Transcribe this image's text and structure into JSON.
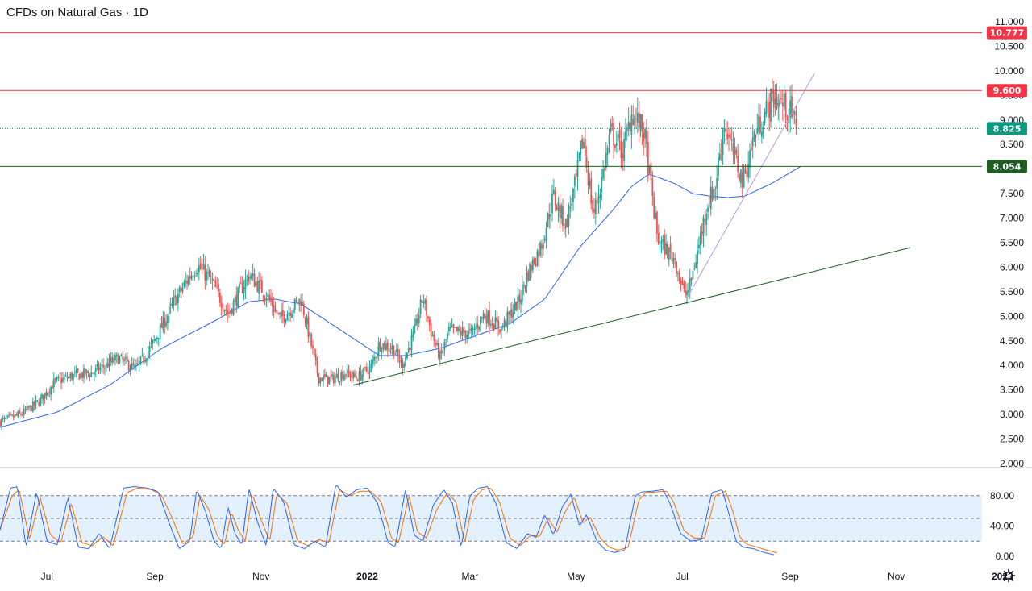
{
  "header": {
    "title": "CFDs on Natural Gas · 1D"
  },
  "colors": {
    "up": "#26a69a",
    "down": "#ef5350",
    "ma": "#2962ff",
    "resistance": "#f23645",
    "support": "#1b5e20",
    "last": "#089981",
    "trend_light": "#b39ddb",
    "stoch_k": "#2962ff",
    "stoch_d": "#ff6d00",
    "stoch_band": "#e3f0fd"
  },
  "icons": {
    "settings": "gear-icon"
  },
  "chart_data": [
    {
      "type": "candlestick",
      "title": "CFDs on Natural Gas · 1D",
      "ylim": [
        2.0,
        11.0
      ],
      "y_ticks": [
        "2.000",
        "2.500",
        "3.000",
        "3.500",
        "4.000",
        "4.500",
        "5.000",
        "5.500",
        "6.000",
        "6.500",
        "7.000",
        "7.500",
        "8.000",
        "8.500",
        "9.000",
        "9.500",
        "10.000",
        "10.500",
        "11.000"
      ],
      "x_ticks": [
        "Jul",
        "Sep",
        "Nov",
        "2022",
        "Mar",
        "May",
        "Jul",
        "Sep",
        "Nov",
        "2023"
      ],
      "x_tick_days": [
        14,
        76,
        137,
        198,
        257,
        318,
        379,
        441,
        502,
        563
      ],
      "xlim_days": [
        -13,
        580
      ],
      "anchors": [
        [
          -13,
          2.85
        ],
        [
          0,
          3.02
        ],
        [
          10,
          3.28
        ],
        [
          18,
          3.65
        ],
        [
          28,
          3.78
        ],
        [
          40,
          3.85
        ],
        [
          55,
          4.15
        ],
        [
          65,
          3.92
        ],
        [
          75,
          4.45
        ],
        [
          88,
          5.35
        ],
        [
          100,
          6.05
        ],
        [
          108,
          5.75
        ],
        [
          118,
          5.05
        ],
        [
          130,
          5.85
        ],
        [
          140,
          5.45
        ],
        [
          148,
          4.95
        ],
        [
          160,
          5.35
        ],
        [
          165,
          4.55
        ],
        [
          170,
          3.75
        ],
        [
          178,
          3.72
        ],
        [
          185,
          3.85
        ],
        [
          192,
          3.75
        ],
        [
          200,
          3.95
        ],
        [
          205,
          4.45
        ],
        [
          213,
          4.35
        ],
        [
          218,
          4.0
        ],
        [
          225,
          4.65
        ],
        [
          230,
          5.4
        ],
        [
          235,
          4.65
        ],
        [
          240,
          4.15
        ],
        [
          245,
          4.7
        ],
        [
          258,
          4.65
        ],
        [
          265,
          5.05
        ],
        [
          275,
          4.75
        ],
        [
          285,
          5.3
        ],
        [
          290,
          5.85
        ],
        [
          298,
          6.45
        ],
        [
          305,
          7.45
        ],
        [
          312,
          6.85
        ],
        [
          318,
          7.75
        ],
        [
          322,
          8.65
        ],
        [
          328,
          7.05
        ],
        [
          332,
          7.65
        ],
        [
          338,
          8.75
        ],
        [
          345,
          8.35
        ],
        [
          350,
          9.15
        ],
        [
          357,
          8.75
        ],
        [
          365,
          6.55
        ],
        [
          375,
          6.15
        ],
        [
          380,
          5.45
        ],
        [
          383,
          5.55
        ],
        [
          388,
          6.35
        ],
        [
          393,
          7.25
        ],
        [
          398,
          7.65
        ],
        [
          403,
          8.95
        ],
        [
          408,
          8.35
        ],
        [
          414,
          7.75
        ],
        [
          420,
          8.65
        ],
        [
          426,
          9.1
        ],
        [
          431,
          9.45
        ],
        [
          436,
          9.35
        ],
        [
          441,
          9.15
        ],
        [
          445,
          8.82
        ]
      ],
      "ma_anchors": [
        [
          -13,
          2.74
        ],
        [
          20,
          3.05
        ],
        [
          50,
          3.6
        ],
        [
          80,
          4.35
        ],
        [
          110,
          4.9
        ],
        [
          130,
          5.3
        ],
        [
          145,
          5.35
        ],
        [
          160,
          5.25
        ],
        [
          175,
          4.9
        ],
        [
          190,
          4.55
        ],
        [
          205,
          4.2
        ],
        [
          220,
          4.2
        ],
        [
          240,
          4.35
        ],
        [
          260,
          4.6
        ],
        [
          280,
          4.85
        ],
        [
          300,
          5.35
        ],
        [
          320,
          6.4
        ],
        [
          340,
          7.2
        ],
        [
          350,
          7.65
        ],
        [
          360,
          7.9
        ],
        [
          375,
          7.7
        ],
        [
          385,
          7.5
        ],
        [
          395,
          7.45
        ],
        [
          405,
          7.42
        ],
        [
          415,
          7.45
        ],
        [
          430,
          7.7
        ],
        [
          447,
          8.05
        ]
      ],
      "trendlines": [
        {
          "name": "rising-support",
          "from": [
            190,
            3.6
          ],
          "to": [
            510,
            6.4
          ]
        },
        {
          "name": "short-term-trend",
          "from": [
            383,
            5.45
          ],
          "to": [
            455,
            9.95
          ]
        }
      ],
      "horizontal_levels": [
        {
          "name": "resistance-high",
          "value": 10.777,
          "label": "10.777",
          "color_key": "resistance"
        },
        {
          "name": "resistance",
          "value": 9.6,
          "label": "9.600",
          "color_key": "resistance"
        },
        {
          "name": "last-price",
          "value": 8.825,
          "label": "8.825",
          "color_key": "last",
          "dotted": true
        },
        {
          "name": "support",
          "value": 8.054,
          "label": "8.054",
          "color_key": "support"
        }
      ]
    },
    {
      "type": "line",
      "name": "stochastic",
      "ylim": [
        0,
        100
      ],
      "y_ticks": [
        "0.00",
        "40.00",
        "80.00"
      ],
      "band": [
        20,
        80
      ],
      "midline": 50,
      "k_anchors": [
        [
          -13,
          35
        ],
        [
          -7,
          90
        ],
        [
          -3,
          92
        ],
        [
          2,
          12
        ],
        [
          8,
          85
        ],
        [
          14,
          20
        ],
        [
          20,
          15
        ],
        [
          26,
          78
        ],
        [
          32,
          12
        ],
        [
          38,
          10
        ],
        [
          44,
          30
        ],
        [
          50,
          10
        ],
        [
          58,
          90
        ],
        [
          64,
          92
        ],
        [
          72,
          90
        ],
        [
          78,
          85
        ],
        [
          84,
          45
        ],
        [
          90,
          10
        ],
        [
          96,
          20
        ],
        [
          100,
          88
        ],
        [
          105,
          60
        ],
        [
          110,
          20
        ],
        [
          114,
          10
        ],
        [
          118,
          65
        ],
        [
          122,
          30
        ],
        [
          126,
          15
        ],
        [
          130,
          90
        ],
        [
          135,
          45
        ],
        [
          140,
          14
        ],
        [
          144,
          90
        ],
        [
          150,
          72
        ],
        [
          156,
          15
        ],
        [
          162,
          10
        ],
        [
          168,
          20
        ],
        [
          174,
          12
        ],
        [
          180,
          95
        ],
        [
          186,
          78
        ],
        [
          192,
          88
        ],
        [
          198,
          90
        ],
        [
          204,
          70
        ],
        [
          210,
          18
        ],
        [
          214,
          12
        ],
        [
          220,
          88
        ],
        [
          225,
          28
        ],
        [
          230,
          20
        ],
        [
          236,
          68
        ],
        [
          242,
          88
        ],
        [
          247,
          70
        ],
        [
          252,
          12
        ],
        [
          257,
          80
        ],
        [
          262,
          90
        ],
        [
          267,
          92
        ],
        [
          272,
          70
        ],
        [
          278,
          18
        ],
        [
          284,
          10
        ],
        [
          290,
          30
        ],
        [
          295,
          25
        ],
        [
          300,
          55
        ],
        [
          305,
          28
        ],
        [
          310,
          65
        ],
        [
          315,
          82
        ],
        [
          320,
          40
        ],
        [
          324,
          55
        ],
        [
          330,
          20
        ],
        [
          335,
          8
        ],
        [
          340,
          5
        ],
        [
          346,
          8
        ],
        [
          352,
          80
        ],
        [
          356,
          85
        ],
        [
          362,
          86
        ],
        [
          368,
          88
        ],
        [
          372,
          70
        ],
        [
          378,
          30
        ],
        [
          384,
          20
        ],
        [
          390,
          22
        ],
        [
          396,
          84
        ],
        [
          402,
          88
        ],
        [
          406,
          55
        ],
        [
          410,
          20
        ],
        [
          414,
          12
        ],
        [
          420,
          10
        ],
        [
          426,
          5
        ],
        [
          432,
          2
        ]
      ],
      "d_anchors": [
        [
          -13,
          35
        ],
        [
          -6,
          80
        ],
        [
          -2,
          88
        ],
        [
          4,
          22
        ],
        [
          10,
          78
        ],
        [
          16,
          28
        ],
        [
          22,
          18
        ],
        [
          28,
          70
        ],
        [
          34,
          18
        ],
        [
          40,
          14
        ],
        [
          46,
          26
        ],
        [
          52,
          14
        ],
        [
          60,
          84
        ],
        [
          66,
          90
        ],
        [
          74,
          88
        ],
        [
          80,
          80
        ],
        [
          86,
          50
        ],
        [
          92,
          16
        ],
        [
          98,
          26
        ],
        [
          102,
          80
        ],
        [
          107,
          62
        ],
        [
          112,
          26
        ],
        [
          116,
          16
        ],
        [
          120,
          58
        ],
        [
          124,
          34
        ],
        [
          128,
          20
        ],
        [
          132,
          82
        ],
        [
          137,
          48
        ],
        [
          142,
          20
        ],
        [
          146,
          82
        ],
        [
          152,
          70
        ],
        [
          158,
          20
        ],
        [
          164,
          14
        ],
        [
          170,
          22
        ],
        [
          176,
          18
        ],
        [
          182,
          88
        ],
        [
          188,
          80
        ],
        [
          194,
          86
        ],
        [
          200,
          86
        ],
        [
          206,
          72
        ],
        [
          212,
          24
        ],
        [
          216,
          18
        ],
        [
          222,
          80
        ],
        [
          227,
          32
        ],
        [
          232,
          24
        ],
        [
          238,
          62
        ],
        [
          244,
          84
        ],
        [
          249,
          72
        ],
        [
          254,
          18
        ],
        [
          259,
          74
        ],
        [
          264,
          88
        ],
        [
          269,
          90
        ],
        [
          274,
          72
        ],
        [
          280,
          24
        ],
        [
          286,
          14
        ],
        [
          292,
          28
        ],
        [
          297,
          26
        ],
        [
          302,
          50
        ],
        [
          307,
          32
        ],
        [
          312,
          60
        ],
        [
          317,
          78
        ],
        [
          322,
          44
        ],
        [
          326,
          52
        ],
        [
          332,
          24
        ],
        [
          337,
          12
        ],
        [
          342,
          8
        ],
        [
          348,
          12
        ],
        [
          354,
          74
        ],
        [
          358,
          84
        ],
        [
          364,
          85
        ],
        [
          370,
          86
        ],
        [
          374,
          72
        ],
        [
          380,
          34
        ],
        [
          386,
          24
        ],
        [
          392,
          24
        ],
        [
          398,
          80
        ],
        [
          404,
          86
        ],
        [
          408,
          60
        ],
        [
          412,
          26
        ],
        [
          416,
          16
        ],
        [
          422,
          12
        ],
        [
          428,
          8
        ],
        [
          434,
          4
        ]
      ]
    }
  ]
}
